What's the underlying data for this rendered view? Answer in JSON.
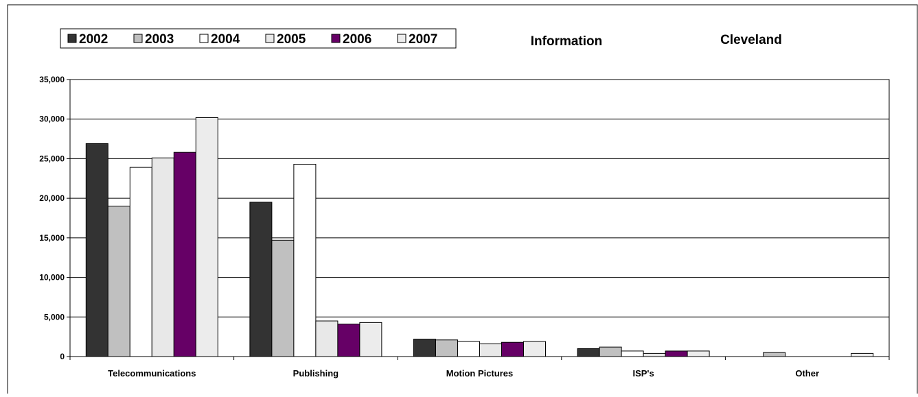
{
  "chart_data": {
    "type": "bar",
    "title": "Information",
    "subtitle": "Cleveland",
    "xlabel": "",
    "ylabel": "",
    "categories": [
      "Telecommunications",
      "Publishing",
      "Motion Pictures",
      "ISP's",
      "Other"
    ],
    "ylim": [
      0,
      35000
    ],
    "yticks": [
      0,
      5000,
      10000,
      15000,
      20000,
      25000,
      30000,
      35000
    ],
    "ytick_labels": [
      "0",
      "5,000",
      "10,000",
      "15,000",
      "20,000",
      "25,000",
      "30,000",
      "35,000"
    ],
    "grid": true,
    "legend_position": "top-left",
    "series": [
      {
        "name": "2002",
        "color": "#333333",
        "values": [
          26900,
          19500,
          2200,
          1000,
          0
        ]
      },
      {
        "name": "2003",
        "color": "#c0c0c0",
        "values": [
          19000,
          14700,
          2100,
          1200,
          500
        ]
      },
      {
        "name": "2004",
        "color": "#ffffff",
        "values": [
          23900,
          24300,
          1900,
          700,
          0
        ]
      },
      {
        "name": "2005",
        "color": "#e8e8e8",
        "values": [
          25100,
          4500,
          1600,
          400,
          0
        ]
      },
      {
        "name": "2006",
        "color": "#660066",
        "values": [
          25800,
          4100,
          1800,
          700,
          0
        ]
      },
      {
        "name": "2007",
        "color": "#ececec",
        "values": [
          30200,
          4300,
          1900,
          700,
          400
        ]
      }
    ]
  }
}
